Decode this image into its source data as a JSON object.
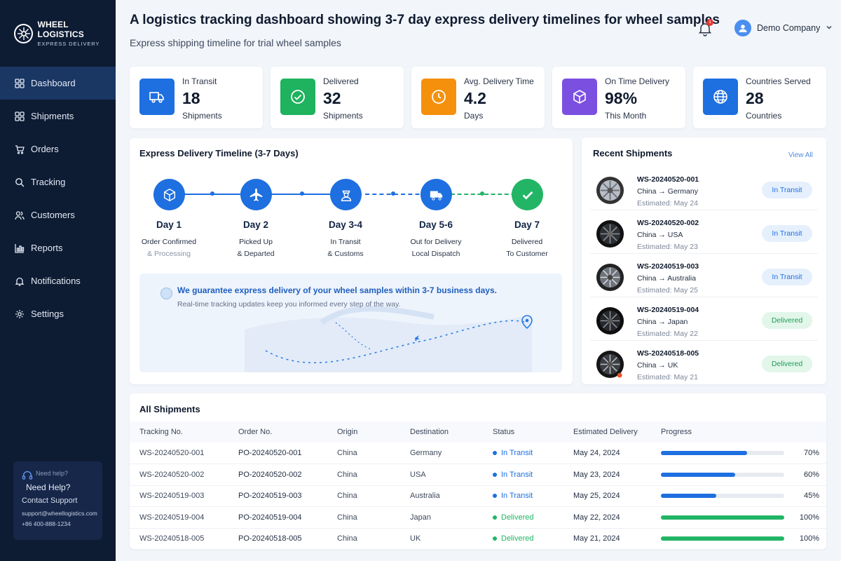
{
  "brand": {
    "name": "WHEEL LOGISTICS",
    "subtitle": "EXPRESS DELIVERY"
  },
  "sidebar": {
    "items": [
      {
        "label": "Dashboard",
        "icon": "grid-icon",
        "active": true
      },
      {
        "label": "Shipments",
        "icon": "grid-icon",
        "active": false
      },
      {
        "label": "Orders",
        "icon": "cart-icon",
        "active": false
      },
      {
        "label": "Tracking",
        "icon": "search-icon",
        "active": false
      },
      {
        "label": "Customers",
        "icon": "users-icon",
        "active": false
      },
      {
        "label": "Reports",
        "icon": "chart-icon",
        "active": false
      },
      {
        "label": "Notifications",
        "icon": "bell-icon",
        "active": false
      },
      {
        "label": "Settings",
        "icon": "gear-icon",
        "active": false
      }
    ],
    "help": {
      "ghost_label": "Need help?",
      "title": "Need Help?",
      "contact": "Contact Support",
      "email": "support@wheellogistics.com",
      "phone": "+86 400-888-1234"
    }
  },
  "header": {
    "title": "A logistics tracking dashboard showing 3-7 day express delivery timelines for wheel samples",
    "subtitle": "Express shipping timeline for trial wheel samples",
    "notification_count": "1",
    "user": "Demo Company"
  },
  "stats": [
    {
      "label": "In Transit",
      "value": "18",
      "unit": "Shipments",
      "icon": "truck-icon",
      "color": "#1e6fe0"
    },
    {
      "label": "Delivered",
      "value": "32",
      "unit": "Shipments",
      "icon": "check-circle-icon",
      "color": "#1fb25f"
    },
    {
      "label": "Avg. Delivery Time",
      "value": "4.2",
      "unit": "Days",
      "icon": "clock-icon",
      "color": "#f5900d"
    },
    {
      "label": "On Time Delivery",
      "value": "98%",
      "unit": "This Month",
      "icon": "box-icon",
      "color": "#7b4fe0"
    },
    {
      "label": "Countries Served",
      "value": "28",
      "unit": "Countries",
      "icon": "globe-icon",
      "color": "#1e6fe0"
    }
  ],
  "timeline": {
    "title": "Express Delivery Timeline (3-7 Days)",
    "steps": [
      {
        "day": "Day 1",
        "line1": "Order Confirmed",
        "line2": "& Processing",
        "icon": "box-icon"
      },
      {
        "day": "Day 2",
        "line1": "Picked Up",
        "line2": "& Departed",
        "icon": "plane-icon"
      },
      {
        "day": "Day 3-4",
        "line1": "In Transit",
        "line2": "& Customs",
        "icon": "customs-officer-icon"
      },
      {
        "day": "Day 5-6",
        "line1": "Out for Delivery",
        "line2": "Local Dispatch",
        "icon": "truck-icon"
      },
      {
        "day": "Day 7",
        "line1": "Delivered",
        "line2": "To Customer",
        "icon": "check-icon"
      }
    ],
    "guarantee_title": "We guarantee express delivery of your wheel samples within 3-7 business days.",
    "guarantee_sub": "Real-time tracking updates keep you informed every step of the way."
  },
  "recent": {
    "title": "Recent Shipments",
    "view_all": "View All",
    "items": [
      {
        "id": "WS-20240520-001",
        "route": "China → Germany",
        "est": "Estimated: May 24",
        "status": "In Transit"
      },
      {
        "id": "WS-20240520-002",
        "route": "China → USA",
        "est": "Estimated: May 23",
        "status": "In Transit"
      },
      {
        "id": "WS-20240519-003",
        "route": "China → Australia",
        "est": "Estimated: May 25",
        "status": "In Transit"
      },
      {
        "id": "WS-20240519-004",
        "route": "China → Japan",
        "est": "Estimated: May 22",
        "status": "Delivered"
      },
      {
        "id": "WS-20240518-005",
        "route": "China → UK",
        "est": "Estimated: May 21",
        "status": "Delivered"
      }
    ]
  },
  "table": {
    "title": "All Shipments",
    "columns": [
      "Tracking No.",
      "Order No.",
      "Origin",
      "Destination",
      "Status",
      "Estimated Delivery",
      "Progress"
    ],
    "rows": [
      {
        "tracking": "WS-20240520-001",
        "order": "PO-20240520-001",
        "origin": "China",
        "destination": "Germany",
        "status": "In Transit",
        "eta": "May 24, 2024",
        "progress": 70,
        "progress_label": "70%"
      },
      {
        "tracking": "WS-20240520-002",
        "order": "PO-20240520-002",
        "origin": "China",
        "destination": "USA",
        "status": "In Transit",
        "eta": "May 23, 2024",
        "progress": 60,
        "progress_label": "60%"
      },
      {
        "tracking": "WS-20240519-003",
        "order": "PO-20240519-003",
        "origin": "China",
        "destination": "Australia",
        "status": "In Transit",
        "eta": "May 25, 2024",
        "progress": 45,
        "progress_label": "45%"
      },
      {
        "tracking": "WS-20240519-004",
        "order": "PO-20240519-004",
        "origin": "China",
        "destination": "Japan",
        "status": "Delivered",
        "eta": "May 22, 2024",
        "progress": 100,
        "progress_label": "100%"
      },
      {
        "tracking": "WS-20240518-005",
        "order": "PO-20240518-005",
        "origin": "China",
        "destination": "UK",
        "status": "Delivered",
        "eta": "May 21, 2024",
        "progress": 100,
        "progress_label": "100%"
      }
    ]
  },
  "colors": {
    "primary": "#1e6fe0",
    "success": "#22b565",
    "sidebar": "#0d1b33"
  }
}
